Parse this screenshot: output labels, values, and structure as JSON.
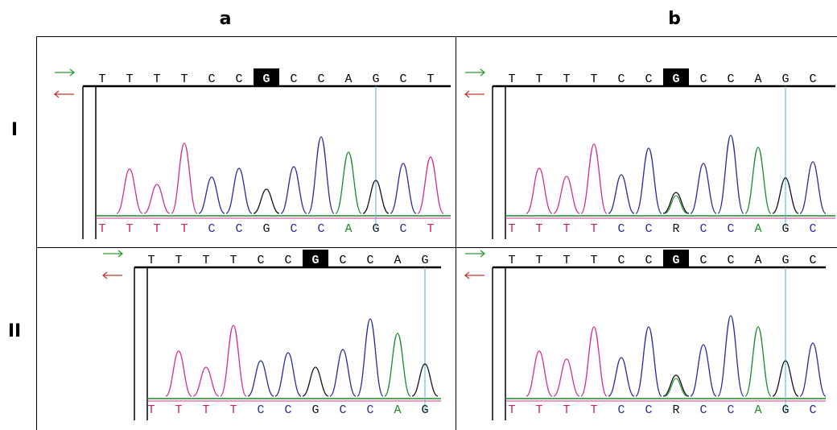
{
  "column_labels": [
    "a",
    "b"
  ],
  "row_labels": [
    "I",
    "II"
  ],
  "panels": [
    {
      "top": [
        "T",
        "T",
        "T",
        "T",
        "C",
        "C",
        "G",
        "C",
        "C",
        "A",
        "G",
        "C",
        "T"
      ],
      "bottom": [
        "T",
        "T",
        "T",
        "T",
        "C",
        "C",
        "G",
        "C",
        "C",
        "A",
        "G",
        "C",
        "T"
      ]
    },
    {
      "top": [
        "T",
        "T",
        "T",
        "T",
        "C",
        "C",
        "G",
        "C",
        "C",
        "A",
        "G",
        "C"
      ],
      "bottom": [
        "T",
        "T",
        "T",
        "T",
        "C",
        "C",
        "R",
        "C",
        "C",
        "A",
        "G",
        "C"
      ]
    },
    {
      "top": [
        "T",
        "T",
        "T",
        "T",
        "C",
        "C",
        "G",
        "C",
        "C",
        "A",
        "G"
      ],
      "bottom": [
        "T",
        "T",
        "T",
        "T",
        "C",
        "C",
        "G",
        "C",
        "C",
        "A",
        "G"
      ]
    },
    {
      "top": [
        "T",
        "T",
        "T",
        "T",
        "C",
        "C",
        "G",
        "C",
        "C",
        "A",
        "G",
        "C"
      ],
      "bottom": [
        "T",
        "T",
        "T",
        "T",
        "C",
        "C",
        "R",
        "C",
        "C",
        "A",
        "G",
        "C"
      ]
    }
  ]
}
